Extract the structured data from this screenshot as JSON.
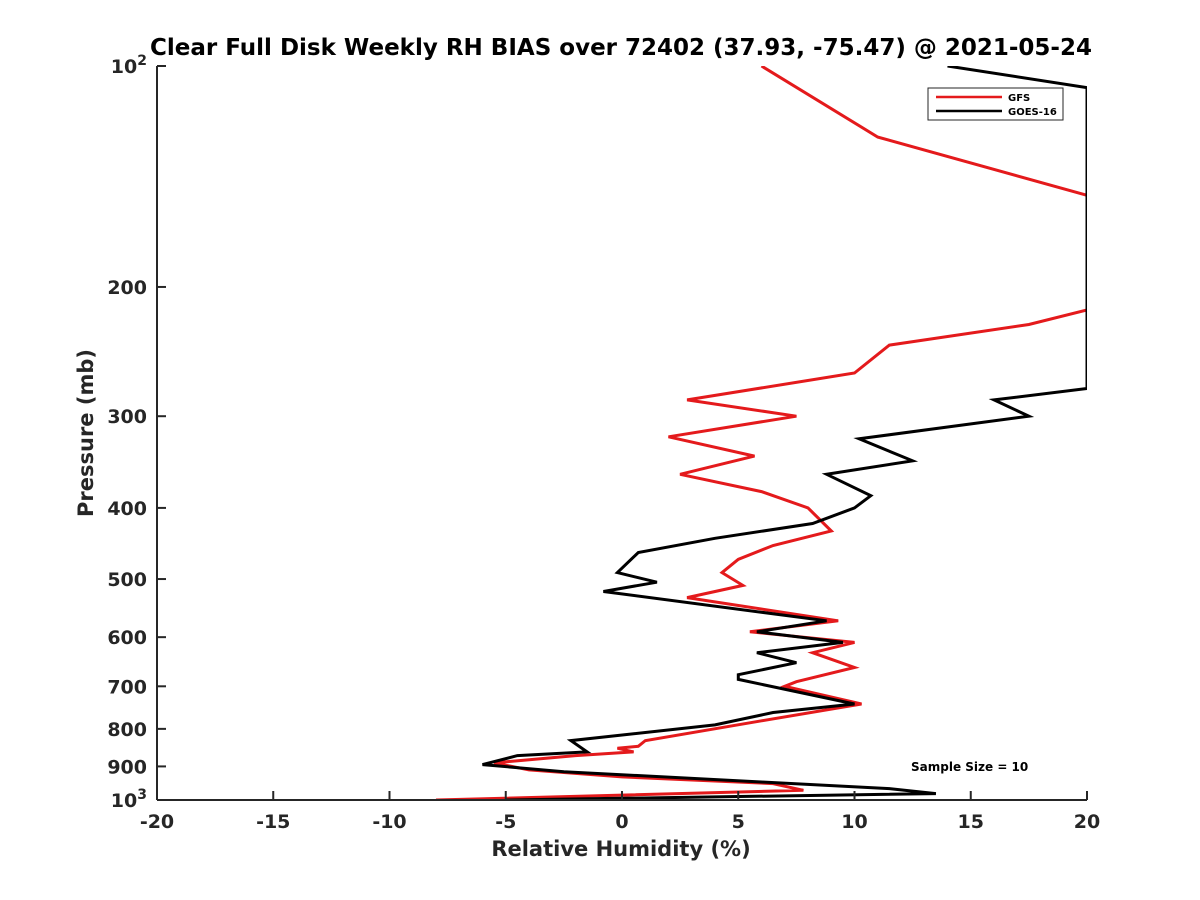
{
  "chart_data": {
    "type": "line",
    "title": "Clear Full Disk Weekly RH BIAS over 72402 (37.93, -75.47) @ 2021-05-24",
    "xlabel": "Relative Humidity (%)",
    "ylabel": "Pressure (mb)",
    "xlim": [
      -20,
      20
    ],
    "ylim": [
      100,
      1000
    ],
    "y_scale": "log",
    "y_reversed": true,
    "grid": false,
    "legend_position": "top-right",
    "x_ticks": [
      -20,
      -15,
      -10,
      -5,
      0,
      5,
      10,
      15,
      20
    ],
    "x_tick_labels": [
      "-20",
      "-15",
      "-10",
      "-5",
      "0",
      "5",
      "10",
      "15",
      "20"
    ],
    "y_ticks": [
      {
        "value": 100,
        "base": "10",
        "exp": "2"
      },
      {
        "value": 200,
        "label": "200"
      },
      {
        "value": 300,
        "label": "300"
      },
      {
        "value": 400,
        "label": "400"
      },
      {
        "value": 500,
        "label": "500"
      },
      {
        "value": 600,
        "label": "600"
      },
      {
        "value": 700,
        "label": "700"
      },
      {
        "value": 800,
        "label": "800"
      },
      {
        "value": 900,
        "label": "900"
      },
      {
        "value": 1000,
        "base": "10",
        "exp": "3"
      }
    ],
    "annotation": "Sample Size = 10",
    "series": [
      {
        "name": "GFS",
        "color": "#e41a1c",
        "points": [
          [
            6.0,
            100
          ],
          [
            11.0,
            125
          ],
          [
            20.0,
            150
          ],
          [
            20.0,
            215
          ],
          [
            17.5,
            225
          ],
          [
            11.5,
            240
          ],
          [
            10.0,
            262
          ],
          [
            2.8,
            285
          ],
          [
            7.5,
            300
          ],
          [
            2.0,
            320
          ],
          [
            5.7,
            340
          ],
          [
            2.5,
            360
          ],
          [
            6.0,
            380
          ],
          [
            8.0,
            400
          ],
          [
            9.0,
            430
          ],
          [
            6.5,
            450
          ],
          [
            5.0,
            470
          ],
          [
            4.3,
            490
          ],
          [
            5.2,
            510
          ],
          [
            2.8,
            530
          ],
          [
            9.3,
            570
          ],
          [
            5.5,
            590
          ],
          [
            10.0,
            610
          ],
          [
            8.2,
            630
          ],
          [
            10.0,
            660
          ],
          [
            7.5,
            690
          ],
          [
            7.0,
            700
          ],
          [
            10.3,
            740
          ],
          [
            6.0,
            780
          ],
          [
            1.0,
            830
          ],
          [
            0.7,
            845
          ],
          [
            -0.2,
            850
          ],
          [
            0.5,
            860
          ],
          [
            -2.0,
            870
          ],
          [
            -5.5,
            890
          ],
          [
            -4.0,
            910
          ],
          [
            0.0,
            930
          ],
          [
            6.5,
            950
          ],
          [
            7.8,
            970
          ],
          [
            -8.0,
            1000
          ]
        ]
      },
      {
        "name": "GOES-16",
        "color": "#000000",
        "points": [
          [
            14.0,
            100
          ],
          [
            20.0,
            107
          ],
          [
            20.0,
            275
          ],
          [
            16.0,
            285
          ],
          [
            17.5,
            300
          ],
          [
            10.2,
            322
          ],
          [
            12.5,
            345
          ],
          [
            8.8,
            360
          ],
          [
            10.7,
            385
          ],
          [
            10.0,
            400
          ],
          [
            8.2,
            420
          ],
          [
            4.0,
            440
          ],
          [
            0.7,
            460
          ],
          [
            -0.2,
            490
          ],
          [
            1.5,
            505
          ],
          [
            -0.8,
            520
          ],
          [
            8.8,
            570
          ],
          [
            5.8,
            590
          ],
          [
            9.5,
            610
          ],
          [
            5.8,
            630
          ],
          [
            7.5,
            650
          ],
          [
            5.0,
            675
          ],
          [
            5.0,
            685
          ],
          [
            10.0,
            740
          ],
          [
            6.5,
            760
          ],
          [
            4.0,
            790
          ],
          [
            -2.2,
            830
          ],
          [
            -1.5,
            860
          ],
          [
            -4.5,
            870
          ],
          [
            -6.0,
            895
          ],
          [
            -2.5,
            915
          ],
          [
            6.0,
            945
          ],
          [
            11.5,
            965
          ],
          [
            13.5,
            980
          ],
          [
            -5.0,
            1000
          ]
        ]
      }
    ]
  }
}
